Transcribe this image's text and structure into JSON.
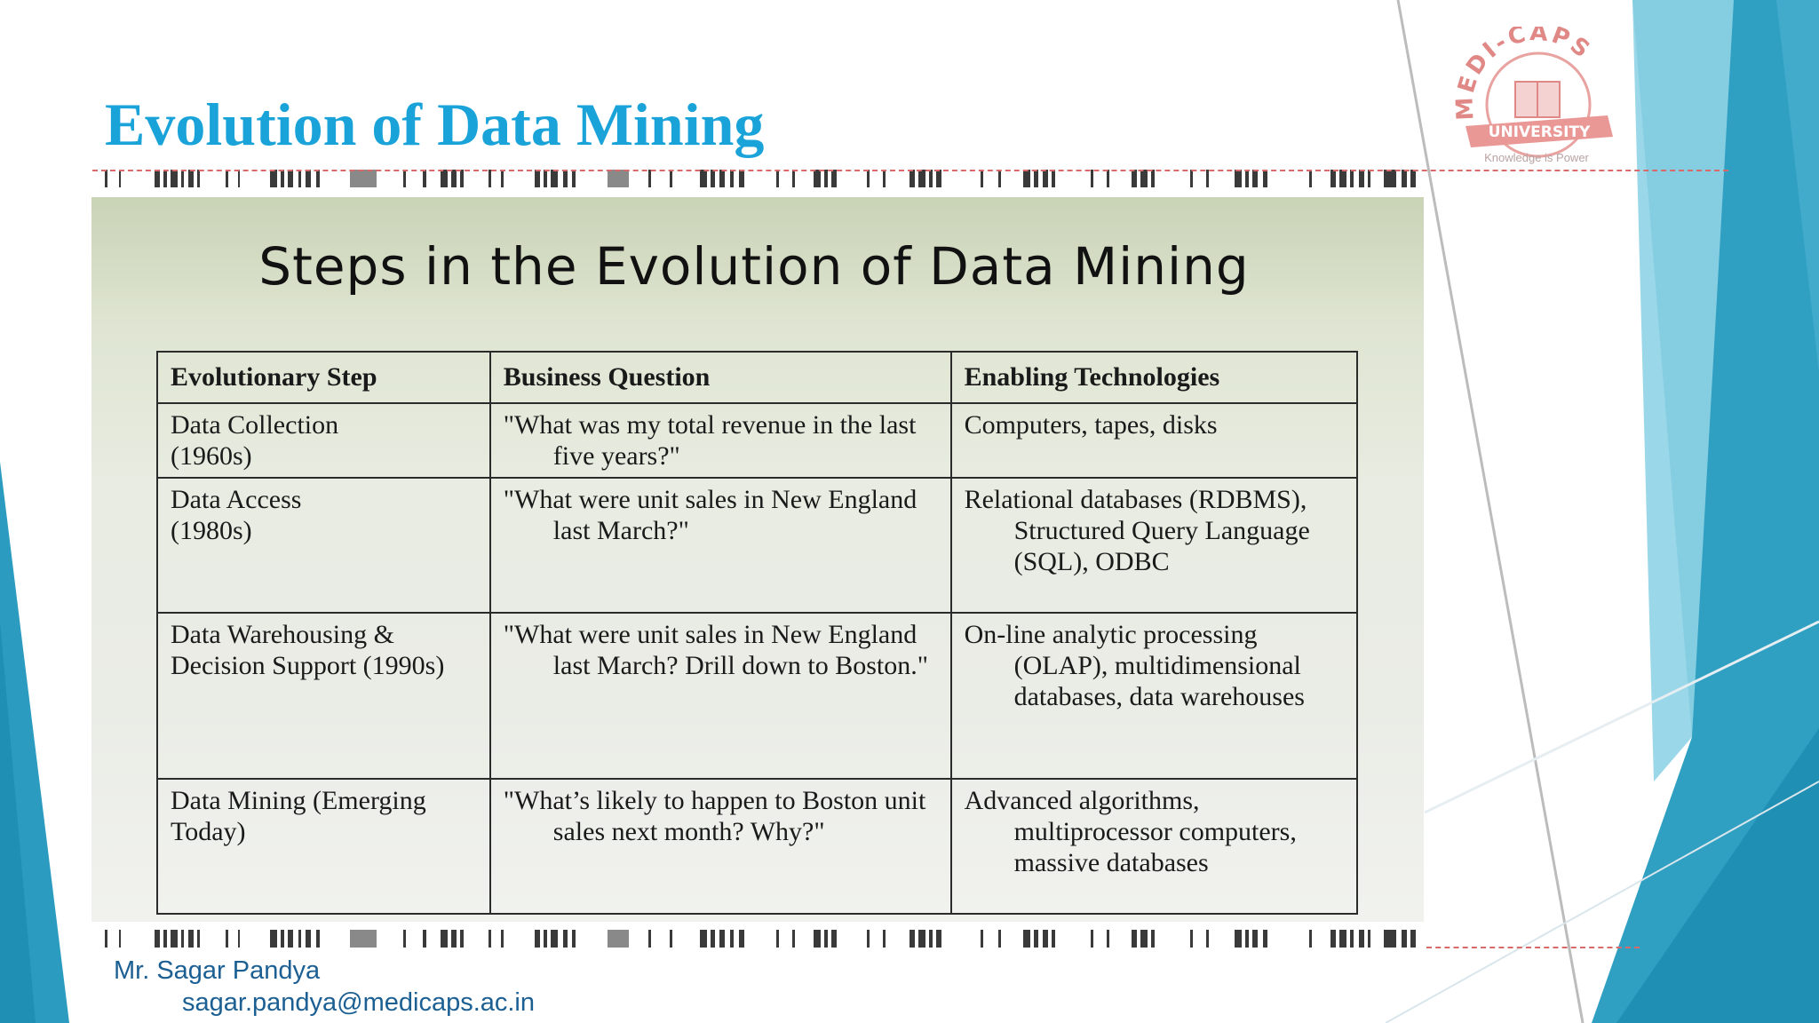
{
  "slide_title": "Evolution of Data Mining",
  "logo": {
    "arc_text": "MEDI-CAPS",
    "ribbon_text": "UNIVERSITY",
    "tagline": "Knowledge is Power"
  },
  "panel": {
    "heading": "Steps in the Evolution of Data Mining",
    "table": {
      "headers": [
        "Evolutionary Step",
        "Business Question",
        "Enabling Technologies"
      ],
      "rows": [
        {
          "step": "Data Collection (1960s)",
          "question": "\"What was my total revenue in the last five years?\"",
          "tech": "Computers, tapes, disks"
        },
        {
          "step": "Data Access (1980s)",
          "question": "\"What were unit sales in New England last March?\"",
          "tech": "Relational databases (RDBMS), Structured Query Language (SQL), ODBC"
        },
        {
          "step": "Data Warehousing & Decision Support (1990s)",
          "question": "\"What were unit sales in New England last March? Drill down to Boston.\"",
          "tech": "On-line analytic processing (OLAP), multidimensional databases, data warehouses"
        },
        {
          "step": "Data Mining (Emerging Today)",
          "question": "\"What’s likely to happen to Boston unit sales next month? Why?\"",
          "tech": "Advanced algorithms, multiprocessor computers, massive databases"
        }
      ]
    }
  },
  "footer": {
    "name": "Mr. Sagar Pandya",
    "email": "sagar.pandya@medicaps.ac.in"
  },
  "colors": {
    "title": "#1aa3d9",
    "footer_text": "#1b5f93",
    "teal": "#2b9cc0",
    "light_teal": "#8fd0e3",
    "logo_red": "#d9534f"
  }
}
